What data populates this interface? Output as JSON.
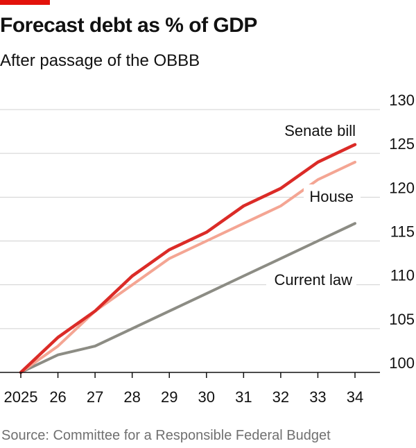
{
  "header": {
    "title": "Forecast debt as % of GDP",
    "subtitle": "After passage of the OBBB"
  },
  "footer": {
    "source": "Source: Committee for a Responsible Federal Budget"
  },
  "colors": {
    "accent": "#e3120b",
    "senate": "#db2b27",
    "house": "#f4a593",
    "current_law": "#8c8c84",
    "grid": "#d0d0d0",
    "axis": "#111111"
  },
  "chart_data": {
    "type": "line",
    "title": "Forecast debt as % of GDP",
    "subtitle": "After passage of the OBBB",
    "xlabel": "",
    "ylabel": "",
    "x": [
      "2025",
      "26",
      "27",
      "28",
      "29",
      "30",
      "31",
      "32",
      "33",
      "34"
    ],
    "ylim": [
      100,
      130
    ],
    "yticks": [
      100,
      105,
      110,
      115,
      120,
      125,
      130
    ],
    "grid": true,
    "series": [
      {
        "name": "Senate bill",
        "color": "#db2b27",
        "values": [
          100,
          104,
          107,
          111,
          114,
          116,
          119,
          121,
          124,
          126
        ]
      },
      {
        "name": "House",
        "color": "#f4a593",
        "values": [
          100,
          103,
          107,
          110,
          113,
          115,
          117,
          119,
          122,
          124
        ]
      },
      {
        "name": "Current law",
        "color": "#8c8c84",
        "values": [
          100,
          102,
          103,
          105,
          107,
          109,
          111,
          113,
          115,
          117
        ]
      }
    ]
  }
}
